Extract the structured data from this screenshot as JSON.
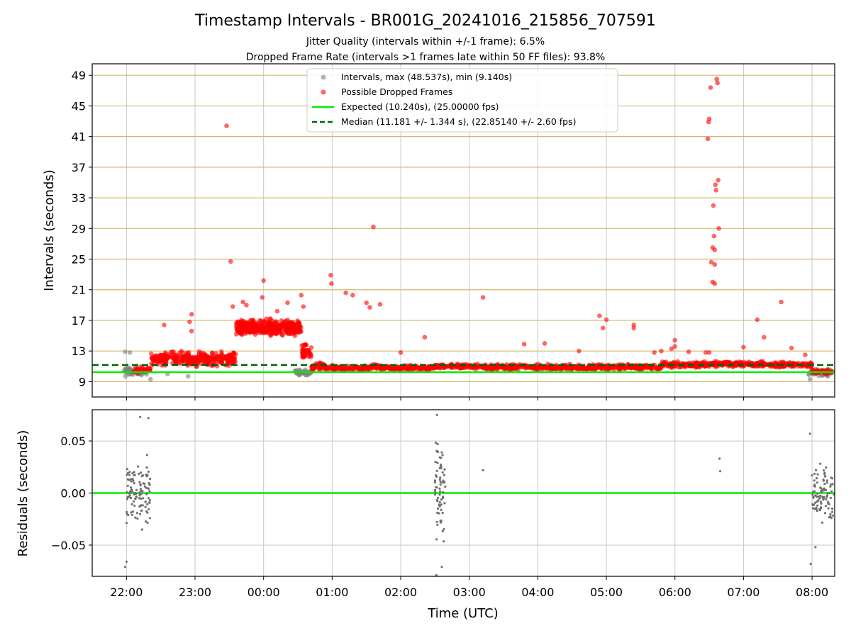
{
  "figure": {
    "title": "Timestamp Intervals - BR001G_20241016_215856_707591",
    "subtitle_line1": "Jitter Quality (intervals within +/-1 frame): 6.5%",
    "subtitle_line2": "Dropped Frame Rate (intervals >1 frames late within 50 FF files): 93.8%"
  },
  "colors": {
    "points_gray": "#808080",
    "dropped_red": "#ff0000",
    "expected_line": "#00ee00",
    "median_line": "#006400",
    "hgrid_top": "#d2b96e",
    "grid": "#c8c8c8",
    "residual_points": "#707070"
  },
  "chart_data": [
    {
      "type": "scatter",
      "panel": "top",
      "ylabel": "Intervals (seconds)",
      "xlabel": "",
      "x_ticks": [
        "22:00",
        "23:00",
        "00:00",
        "01:00",
        "02:00",
        "03:00",
        "04:00",
        "05:00",
        "06:00",
        "07:00",
        "08:00"
      ],
      "x_range_hours": [
        -0.5,
        10.33
      ],
      "y_ticks": [
        9,
        13,
        17,
        21,
        25,
        29,
        33,
        37,
        41,
        45,
        49
      ],
      "ylim": [
        7.0,
        50.5
      ],
      "grid": true,
      "legend_position": "top-center",
      "legend": [
        {
          "label": "Intervals, max (48.537s), min (9.140s)",
          "kind": "gray-dot"
        },
        {
          "label": "Possible Dropped Frames",
          "kind": "red-dot"
        },
        {
          "label": "Expected (10.240s), (25.00000 fps)",
          "kind": "green-line"
        },
        {
          "label": "Median (11.181 +/- 1.344 s), (22.85140 +/- 2.60 fps)",
          "kind": "green-dashed"
        }
      ],
      "expected_interval": 10.24,
      "median_interval": 11.181,
      "series": [
        {
          "name": "Intervals, max (48.537s), min (9.140s)",
          "role": "normal",
          "segments": [
            {
              "x_range": [
                -0.05,
                0.3
              ],
              "y_center": 10.3,
              "y_spread": 0.8,
              "count": 60
            },
            {
              "x_range": [
                2.45,
                2.7
              ],
              "y_center": 10.2,
              "y_spread": 0.5,
              "count": 35
            },
            {
              "x_range": [
                9.95,
                10.3
              ],
              "y_center": 10.2,
              "y_spread": 0.7,
              "count": 45
            }
          ],
          "points": [
            [
              -0.02,
              12.9
            ],
            [
              0.05,
              12.8
            ],
            [
              0.35,
              9.3
            ],
            [
              0.6,
              10.0
            ],
            [
              0.9,
              9.7
            ],
            [
              9.97,
              9.3
            ]
          ]
        },
        {
          "name": "Possible Dropped Frames",
          "role": "dropped",
          "segments": [
            {
              "x_range": [
                0.1,
                0.35
              ],
              "y_center": 10.5,
              "y_spread": 0.6,
              "count": 40
            },
            {
              "x_range": [
                0.35,
                1.6
              ],
              "y_center": 12.0,
              "y_spread": 1.2,
              "count": 320
            },
            {
              "x_range": [
                1.6,
                2.55
              ],
              "y_center": 16.0,
              "y_spread": 1.4,
              "count": 420
            },
            {
              "x_range": [
                2.55,
                2.7
              ],
              "y_center": 13.0,
              "y_spread": 1.6,
              "count": 40
            },
            {
              "x_range": [
                2.7,
                2.9
              ],
              "y_center": 11.0,
              "y_spread": 0.6,
              "count": 50
            },
            {
              "x_range": [
                2.9,
                3.55
              ],
              "y_center": 10.8,
              "y_spread": 0.5,
              "count": 110
            },
            {
              "x_range": [
                3.55,
                3.75
              ],
              "y_center": 10.9,
              "y_spread": 0.5,
              "count": 40
            },
            {
              "x_range": [
                3.75,
                4.5
              ],
              "y_center": 10.8,
              "y_spread": 0.5,
              "count": 120
            },
            {
              "x_range": [
                4.5,
                5.2
              ],
              "y_center": 11.0,
              "y_spread": 0.4,
              "count": 140
            },
            {
              "x_range": [
                5.2,
                6.5
              ],
              "y_center": 10.9,
              "y_spread": 0.5,
              "count": 230
            },
            {
              "x_range": [
                6.5,
                7.1
              ],
              "y_center": 10.9,
              "y_spread": 0.5,
              "count": 100
            },
            {
              "x_range": [
                7.1,
                7.8
              ],
              "y_center": 10.9,
              "y_spread": 0.5,
              "count": 120
            },
            {
              "x_range": [
                7.8,
                8.5
              ],
              "y_center": 11.2,
              "y_spread": 0.5,
              "count": 120
            },
            {
              "x_range": [
                8.5,
                9.3
              ],
              "y_center": 11.3,
              "y_spread": 0.5,
              "count": 140
            },
            {
              "x_range": [
                9.3,
                10.0
              ],
              "y_center": 11.2,
              "y_spread": 0.5,
              "count": 120
            },
            {
              "x_range": [
                10.0,
                10.3
              ],
              "y_center": 10.3,
              "y_spread": 0.4,
              "count": 40
            }
          ],
          "points": [
            [
              0.55,
              16.4
            ],
            [
              0.65,
              12.8
            ],
            [
              0.8,
              13.0
            ],
            [
              0.95,
              17.8
            ],
            [
              0.92,
              16.8
            ],
            [
              0.95,
              15.6
            ],
            [
              1.46,
              42.4
            ],
            [
              1.52,
              24.7
            ],
            [
              1.55,
              18.8
            ],
            [
              1.7,
              19.4
            ],
            [
              1.75,
              19.0
            ],
            [
              2.0,
              22.2
            ],
            [
              1.98,
              20.0
            ],
            [
              2.2,
              18.2
            ],
            [
              2.35,
              19.3
            ],
            [
              2.55,
              20.3
            ],
            [
              2.58,
              18.8
            ],
            [
              2.98,
              22.9
            ],
            [
              2.99,
              21.8
            ],
            [
              3.2,
              20.6
            ],
            [
              3.3,
              20.3
            ],
            [
              3.5,
              19.3
            ],
            [
              3.6,
              29.2
            ],
            [
              3.55,
              18.7
            ],
            [
              3.7,
              19.1
            ],
            [
              4.0,
              12.8
            ],
            [
              4.35,
              14.8
            ],
            [
              5.2,
              20.0
            ],
            [
              5.8,
              13.9
            ],
            [
              6.1,
              14.0
            ],
            [
              6.6,
              13.0
            ],
            [
              6.9,
              17.6
            ],
            [
              6.95,
              16.0
            ],
            [
              7.0,
              17.1
            ],
            [
              7.4,
              16.4
            ],
            [
              7.4,
              16.0
            ],
            [
              7.7,
              12.8
            ],
            [
              7.8,
              13.0
            ],
            [
              7.95,
              13.3
            ],
            [
              8.0,
              14.4
            ],
            [
              8.0,
              13.6
            ],
            [
              8.2,
              12.9
            ],
            [
              8.48,
              40.7
            ],
            [
              8.49,
              42.9
            ],
            [
              8.5,
              43.3
            ],
            [
              8.52,
              47.4
            ],
            [
              8.55,
              26.5
            ],
            [
              8.53,
              24.6
            ],
            [
              8.58,
              24.3
            ],
            [
              8.56,
              32.0
            ],
            [
              8.57,
              28.0
            ],
            [
              8.58,
              26.2
            ],
            [
              8.59,
              34.7
            ],
            [
              8.6,
              34.0
            ],
            [
              8.61,
              48.5
            ],
            [
              8.62,
              48.0
            ],
            [
              8.63,
              35.3
            ],
            [
              8.64,
              29.0
            ],
            [
              8.55,
              22.0
            ],
            [
              8.58,
              21.8
            ],
            [
              8.45,
              12.8
            ],
            [
              8.5,
              12.8
            ],
            [
              9.0,
              13.5
            ],
            [
              9.2,
              17.1
            ],
            [
              9.3,
              14.8
            ],
            [
              9.55,
              19.4
            ],
            [
              9.7,
              13.4
            ],
            [
              9.9,
              12.5
            ]
          ]
        }
      ]
    },
    {
      "type": "scatter",
      "panel": "bottom",
      "ylabel": "Residuals (seconds)",
      "xlabel": "Time (UTC)",
      "x_ticks": [
        "22:00",
        "23:00",
        "00:00",
        "01:00",
        "02:00",
        "03:00",
        "04:00",
        "05:00",
        "06:00",
        "07:00",
        "08:00"
      ],
      "x_range_hours": [
        -0.5,
        10.33
      ],
      "y_ticks": [
        "0.05",
        "0.00",
        "−0.05"
      ],
      "y_tick_values": [
        0.05,
        0.0,
        -0.05
      ],
      "ylim": [
        -0.08,
        0.08
      ],
      "grid": true,
      "zero_line": 0.0,
      "series": [
        {
          "name": "",
          "role": "residual",
          "segments": [
            {
              "x_range": [
                0.0,
                0.35
              ],
              "y_center": 0.0,
              "y_spread": 0.045,
              "count": 110
            },
            {
              "x_range": [
                4.5,
                4.65
              ],
              "y_center": 0.0,
              "y_spread": 0.075,
              "count": 70
            },
            {
              "x_range": [
                10.0,
                10.33
              ],
              "y_center": 0.0,
              "y_spread": 0.035,
              "count": 100
            }
          ],
          "points": [
            [
              -0.02,
              -0.071
            ],
            [
              0.0,
              -0.066
            ],
            [
              0.2,
              0.073
            ],
            [
              0.32,
              0.072
            ],
            [
              4.52,
              -0.079
            ],
            [
              4.53,
              0.075
            ],
            [
              4.6,
              -0.071
            ],
            [
              5.2,
              0.022
            ],
            [
              8.65,
              0.033
            ],
            [
              8.66,
              0.021
            ],
            [
              9.97,
              0.057
            ],
            [
              9.98,
              -0.068
            ],
            [
              10.05,
              -0.052
            ]
          ]
        }
      ]
    }
  ]
}
